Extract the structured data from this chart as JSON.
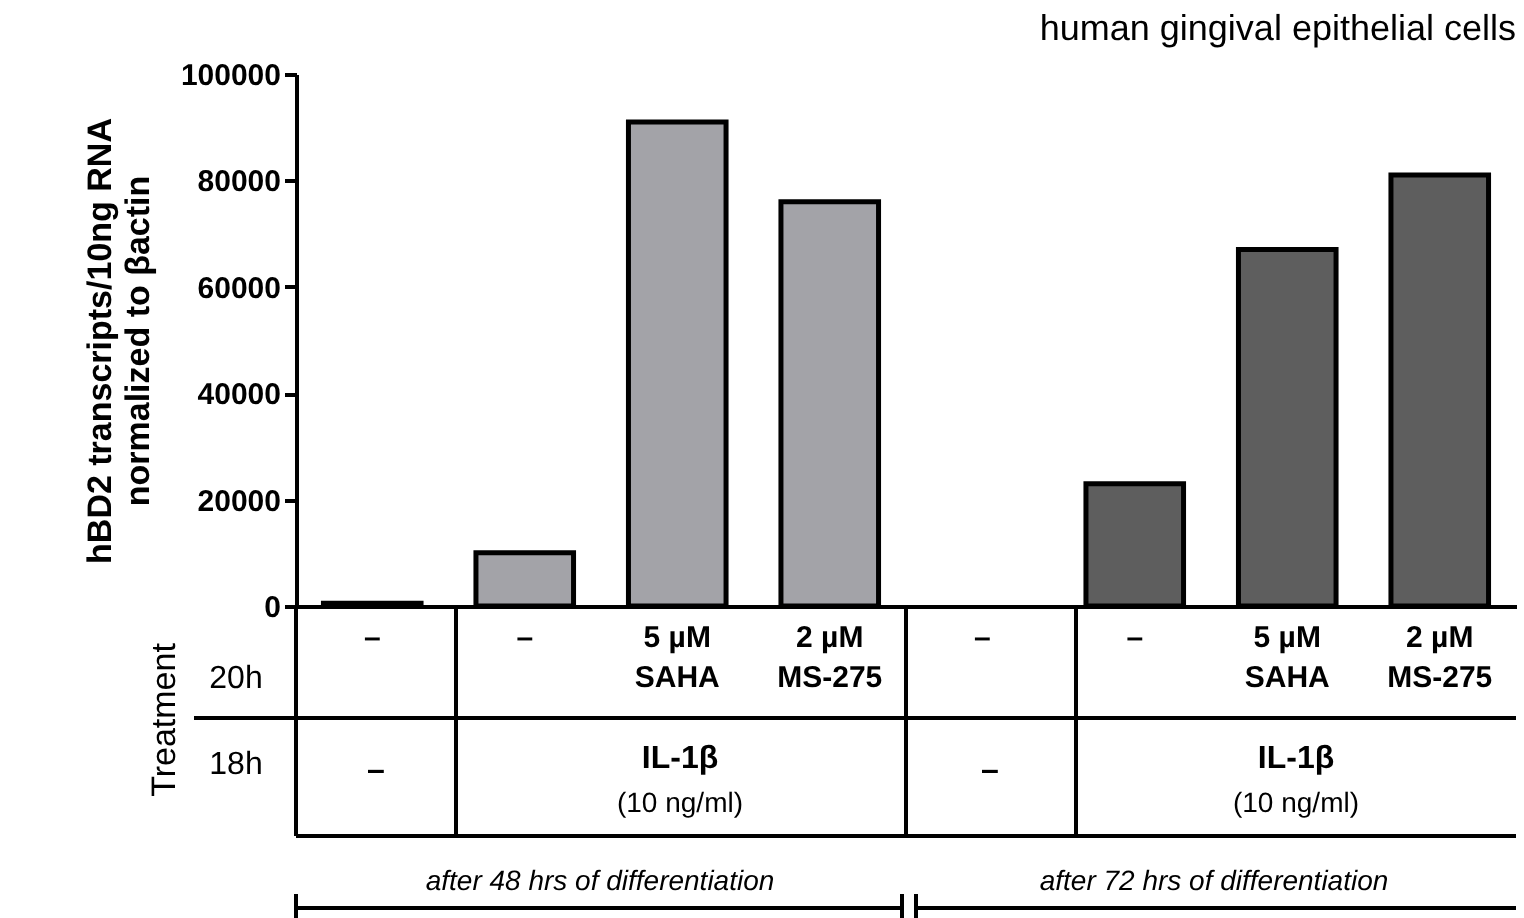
{
  "chart_data": {
    "type": "bar",
    "title": "human gingival epithelial cells",
    "ylabel": "hBD2 transcripts/10ng RNA\nnormalized to βactin",
    "categories": [
      "–",
      "–",
      "5 µM SAHA",
      "2 µM MS-275",
      "–",
      "–",
      "5 µM SAHA",
      "2 µM MS-275"
    ],
    "values": [
      500,
      10000,
      91000,
      76000,
      null,
      23000,
      67000,
      81000
    ],
    "colors": [
      "#a3a3a8",
      "#a3a3a8",
      "#a3a3a8",
      "#a3a3a8",
      "#5e5e5e",
      "#5e5e5e",
      "#5e5e5e",
      "#5e5e5e"
    ],
    "ylim": [
      0,
      100000
    ],
    "yticks": [
      0,
      20000,
      40000,
      60000,
      80000,
      100000
    ],
    "grid": false,
    "legend": false,
    "annotations": [
      "Treatment",
      "20h",
      "18h",
      "–",
      "IL-1β",
      "(10 ng/ml)",
      "–",
      "IL-1β",
      "(10 ng/ml)",
      "after 48 hrs of differentiation",
      "after 72 hrs of differentiation"
    ]
  }
}
